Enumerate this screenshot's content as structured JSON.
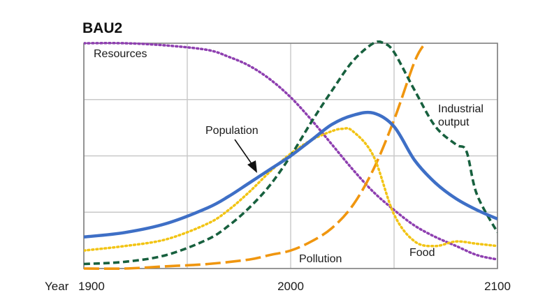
{
  "chart_data": {
    "type": "line",
    "title": "BAU2",
    "x_axis_prefix": "Year",
    "xlim": [
      1900,
      2100
    ],
    "ylim": [
      0,
      1
    ],
    "x_ticks": [
      1900,
      2000,
      2100
    ],
    "x_tick_labels": [
      "1900",
      "2000",
      "2100"
    ],
    "vertical_gridlines": [
      1900,
      1950,
      2000,
      2050,
      2100
    ],
    "horizontal_gridlines": [
      0.25,
      0.5,
      0.75
    ],
    "grid": true,
    "y_tick_labels": false,
    "series": [
      {
        "name": "Resources",
        "color": "#8e3fb0",
        "dash": "dotted",
        "x": [
          1900,
          1920,
          1940,
          1960,
          1970,
          1980,
          1990,
          2000,
          2010,
          2020,
          2030,
          2040,
          2050,
          2060,
          2070,
          2080,
          2090,
          2100
        ],
        "y": [
          1.0,
          1.0,
          0.99,
          0.97,
          0.94,
          0.9,
          0.84,
          0.76,
          0.66,
          0.55,
          0.44,
          0.34,
          0.26,
          0.19,
          0.14,
          0.1,
          0.06,
          0.04
        ]
      },
      {
        "name": "Population",
        "color": "#3e6fc6",
        "dash": "solid",
        "x": [
          1900,
          1920,
          1940,
          1960,
          1970,
          1980,
          1990,
          2000,
          2010,
          2020,
          2030,
          2040,
          2050,
          2060,
          2070,
          2080,
          2090,
          2100
        ],
        "y": [
          0.14,
          0.16,
          0.2,
          0.27,
          0.32,
          0.38,
          0.44,
          0.5,
          0.57,
          0.64,
          0.68,
          0.69,
          0.63,
          0.48,
          0.38,
          0.31,
          0.26,
          0.22
        ]
      },
      {
        "name": "Food",
        "color": "#f2c414",
        "dash": "dotted",
        "x": [
          1900,
          1920,
          1940,
          1960,
          1970,
          1980,
          1990,
          2000,
          2010,
          2020,
          2025,
          2030,
          2040,
          2050,
          2060,
          2070,
          2080,
          2090,
          2100
        ],
        "y": [
          0.08,
          0.1,
          0.13,
          0.2,
          0.26,
          0.34,
          0.43,
          0.51,
          0.57,
          0.61,
          0.62,
          0.61,
          0.5,
          0.24,
          0.12,
          0.1,
          0.12,
          0.11,
          0.1
        ]
      },
      {
        "name": "Industrial output",
        "color": "#17603e",
        "dash": "dashed",
        "x": [
          1900,
          1920,
          1940,
          1960,
          1970,
          1980,
          1990,
          2000,
          2010,
          2020,
          2030,
          2040,
          2045,
          2050,
          2060,
          2070,
          2080,
          2085,
          2090,
          2100
        ],
        "y": [
          0.02,
          0.03,
          0.06,
          0.13,
          0.19,
          0.27,
          0.37,
          0.5,
          0.65,
          0.79,
          0.92,
          1.0,
          1.0,
          0.96,
          0.79,
          0.63,
          0.55,
          0.52,
          0.33,
          0.16
        ]
      },
      {
        "name": "Pollution",
        "color": "#f0960f",
        "dash": "long-dashed",
        "x": [
          1900,
          1920,
          1940,
          1960,
          1980,
          1990,
          2000,
          2010,
          2020,
          2030,
          2040,
          2050,
          2060,
          2065
        ],
        "y": [
          0.0,
          0.0,
          0.01,
          0.02,
          0.04,
          0.06,
          0.08,
          0.12,
          0.18,
          0.28,
          0.44,
          0.66,
          0.92,
          1.0
        ]
      }
    ],
    "annotations": [
      {
        "text": "Resources"
      },
      {
        "text": "Population"
      },
      {
        "text": "Industrial"
      },
      {
        "text": "output"
      },
      {
        "text": "Pollution"
      },
      {
        "text": "Food"
      }
    ]
  }
}
